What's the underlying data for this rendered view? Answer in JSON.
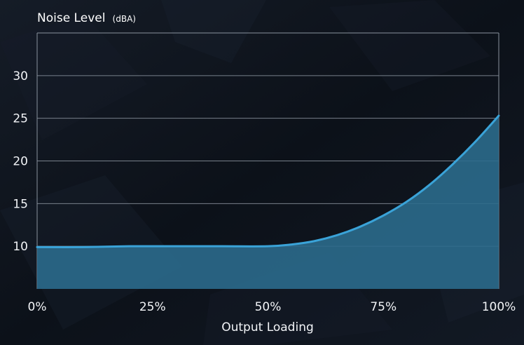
{
  "chart_data": {
    "type": "area",
    "title": "Noise Level",
    "title_unit": "(dBA)",
    "xlabel": "Output Loading",
    "ylabel": "",
    "x_ticks": [
      "0%",
      "25%",
      "50%",
      "75%",
      "100%"
    ],
    "y_ticks": [
      "10",
      "15",
      "20",
      "25",
      "30"
    ],
    "xlim": [
      0,
      100
    ],
    "ylim": [
      5,
      35
    ],
    "grid": "horizontal",
    "series": [
      {
        "x": [
          0,
          10,
          20,
          30,
          40,
          50,
          55,
          60,
          65,
          70,
          75,
          80,
          85,
          90,
          95,
          100
        ],
        "values": [
          9.9,
          9.9,
          10.0,
          10.0,
          10.0,
          10.0,
          10.2,
          10.6,
          11.3,
          12.3,
          13.6,
          15.2,
          17.2,
          19.6,
          22.3,
          25.3
        ]
      }
    ]
  },
  "colors": {
    "background": "#0e141d",
    "line": "#3aa3d8",
    "fill": "#2b6a8c",
    "grid": "#8a939e",
    "text": "#f2f4f7"
  }
}
